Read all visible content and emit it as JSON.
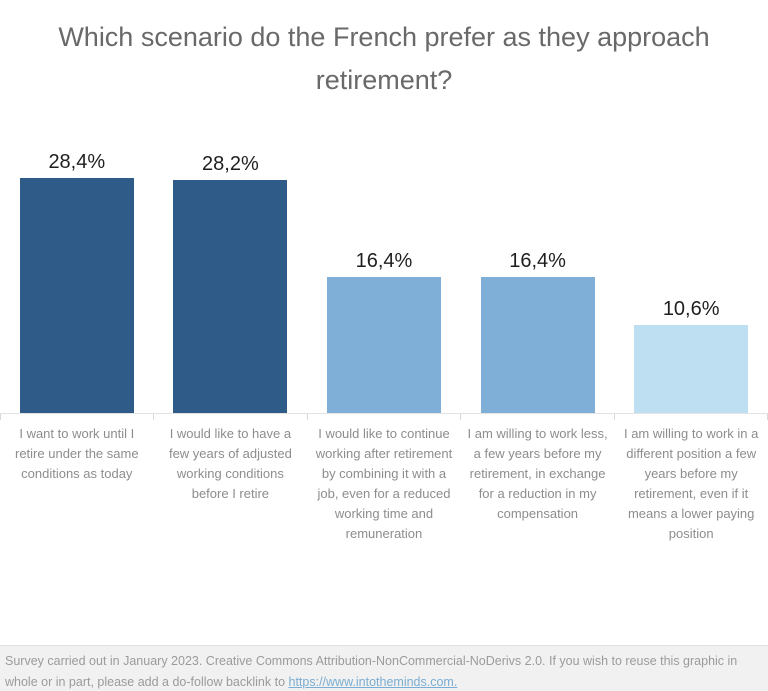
{
  "chart_data": {
    "type": "bar",
    "title": "Which scenario do the French prefer as they approach retirement?",
    "categories": [
      "I want to work until I retire under the same conditions as today",
      "I would like to have a few years of adjusted working conditions before I retire",
      "I would like to continue working after retirement by combining it with a job, even for a reduced working time and remuneration",
      "I am willing to work less, a few years before my retirement, in exchange for a reduction in my compensation",
      "I am willing to work in a different position a few years before my retirement, even if it means a lower paying position"
    ],
    "values": [
      28.4,
      28.2,
      16.4,
      16.4,
      10.6
    ],
    "value_labels": [
      "28,4%",
      "28,2%",
      "16,4%",
      "16,4%",
      "10,6%"
    ],
    "bar_colors": [
      "#2e5b88",
      "#2e5b88",
      "#7fafd6",
      "#7fafd6",
      "#bedff1"
    ],
    "xlabel": "",
    "ylabel": "",
    "ylim": [
      0,
      30
    ],
    "grid": false,
    "legend": "none",
    "value_label_position": "above-bar",
    "decimal_separator": ","
  },
  "colors": {
    "title_text": "#696969",
    "value_text": "#1f1f1f",
    "category_text": "#8d8d8d",
    "axis_line": "#e3e3e3",
    "footer_background": "#f1f1f1",
    "footer_text": "#9b9b9b",
    "link": "#7aadd1"
  },
  "footer": {
    "text_before_link": "Survey carried out in January 2023. Creative Commons Attribution-NonCommercial-NoDerivs 2.0. If you wish to reuse this graphic in whole or in part, please add a do-follow backlink to ",
    "link_text": "https://www.intotheminds.com."
  }
}
